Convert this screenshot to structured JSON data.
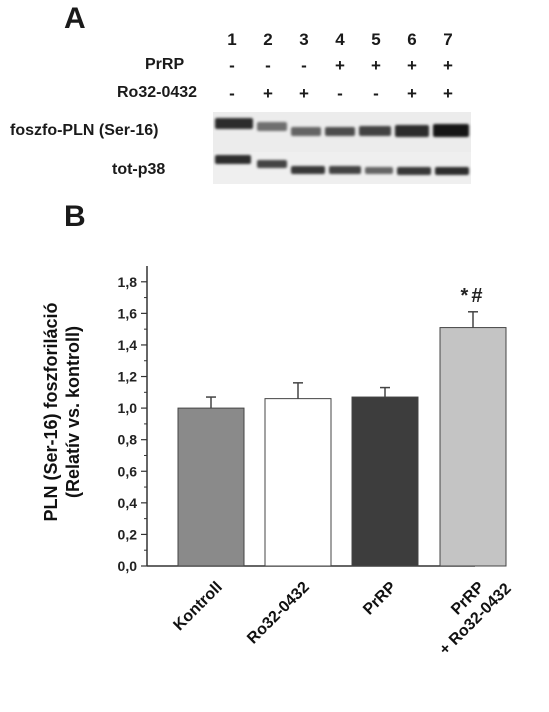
{
  "panel_a": {
    "label": "A",
    "lane_numbers": [
      "1",
      "2",
      "3",
      "4",
      "5",
      "6",
      "7"
    ],
    "treatments": [
      {
        "name": "PrRP",
        "signs": [
          "-",
          "-",
          "-",
          "+",
          "+",
          "+",
          "+"
        ]
      },
      {
        "name": "Ro32-0432",
        "signs": [
          "-",
          "+",
          "+",
          "-",
          "-",
          "+",
          "+"
        ]
      }
    ],
    "blots": [
      {
        "name": "foszfo-PLN (Ser-16)"
      },
      {
        "name": "tot-p38"
      }
    ]
  },
  "panel_b": {
    "label": "B"
  },
  "chart_data": {
    "type": "bar",
    "categories": [
      "Kontroll",
      "Ro32-0432",
      "PrRP",
      "PrRP\n+ Ro32-0432"
    ],
    "values": [
      1.0,
      1.06,
      1.07,
      1.51
    ],
    "errors": [
      0.07,
      0.1,
      0.06,
      0.1
    ],
    "bar_colors": [
      "#8a8a8a",
      "#ffffff",
      "#3d3d3d",
      "#c4c4c4"
    ],
    "annotations": [
      "",
      "",
      "",
      "*#"
    ],
    "ylabel": "PLN (Ser-16) foszforiláció\n(Relatív vs. kontroll)",
    "ylim": [
      0,
      1.9
    ],
    "yticks": [
      0.0,
      0.2,
      0.4,
      0.6,
      0.8,
      1.0,
      1.2,
      1.4,
      1.6,
      1.8
    ],
    "ytick_labels": [
      "0,0",
      "0,2",
      "0,4",
      "0,6",
      "0,8",
      "1,0",
      "1,2",
      "1,4",
      "1,6",
      "1,8"
    ],
    "grid": false,
    "legend": false
  }
}
